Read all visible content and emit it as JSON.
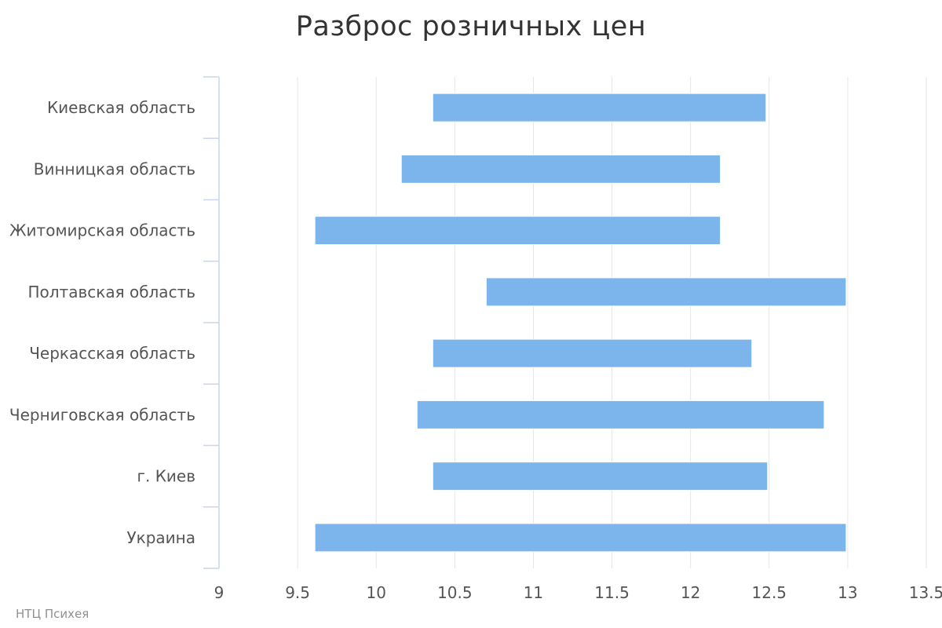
{
  "chart_data": {
    "type": "bar",
    "orientation": "horizontal",
    "title": "Разброс розничных цен",
    "categories": [
      "Киевская область",
      "Винницкая область",
      "Житомирская область",
      "Полтавская область",
      "Черкасская область",
      "Черниговская область",
      "г. Киев",
      "Украина"
    ],
    "ranges": [
      [
        10.36,
        12.48
      ],
      [
        10.16,
        12.19
      ],
      [
        9.61,
        12.19
      ],
      [
        10.7,
        12.99
      ],
      [
        10.36,
        12.39
      ],
      [
        10.26,
        12.85
      ],
      [
        10.36,
        12.49
      ],
      [
        9.61,
        12.99
      ]
    ],
    "xlim": [
      9,
      13.5
    ],
    "xticks": [
      "9",
      "9.5",
      "10",
      "10.5",
      "11",
      "11.5",
      "12",
      "12.5",
      "13",
      "13.5"
    ],
    "xtick_values": [
      9,
      9.5,
      10,
      10.5,
      11,
      11.5,
      12,
      12.5,
      13,
      13.5
    ],
    "xlabel": "",
    "ylabel": "",
    "grid": "vertical",
    "bar_color": "#7cb5ec",
    "credits": "НТЦ Психея"
  }
}
